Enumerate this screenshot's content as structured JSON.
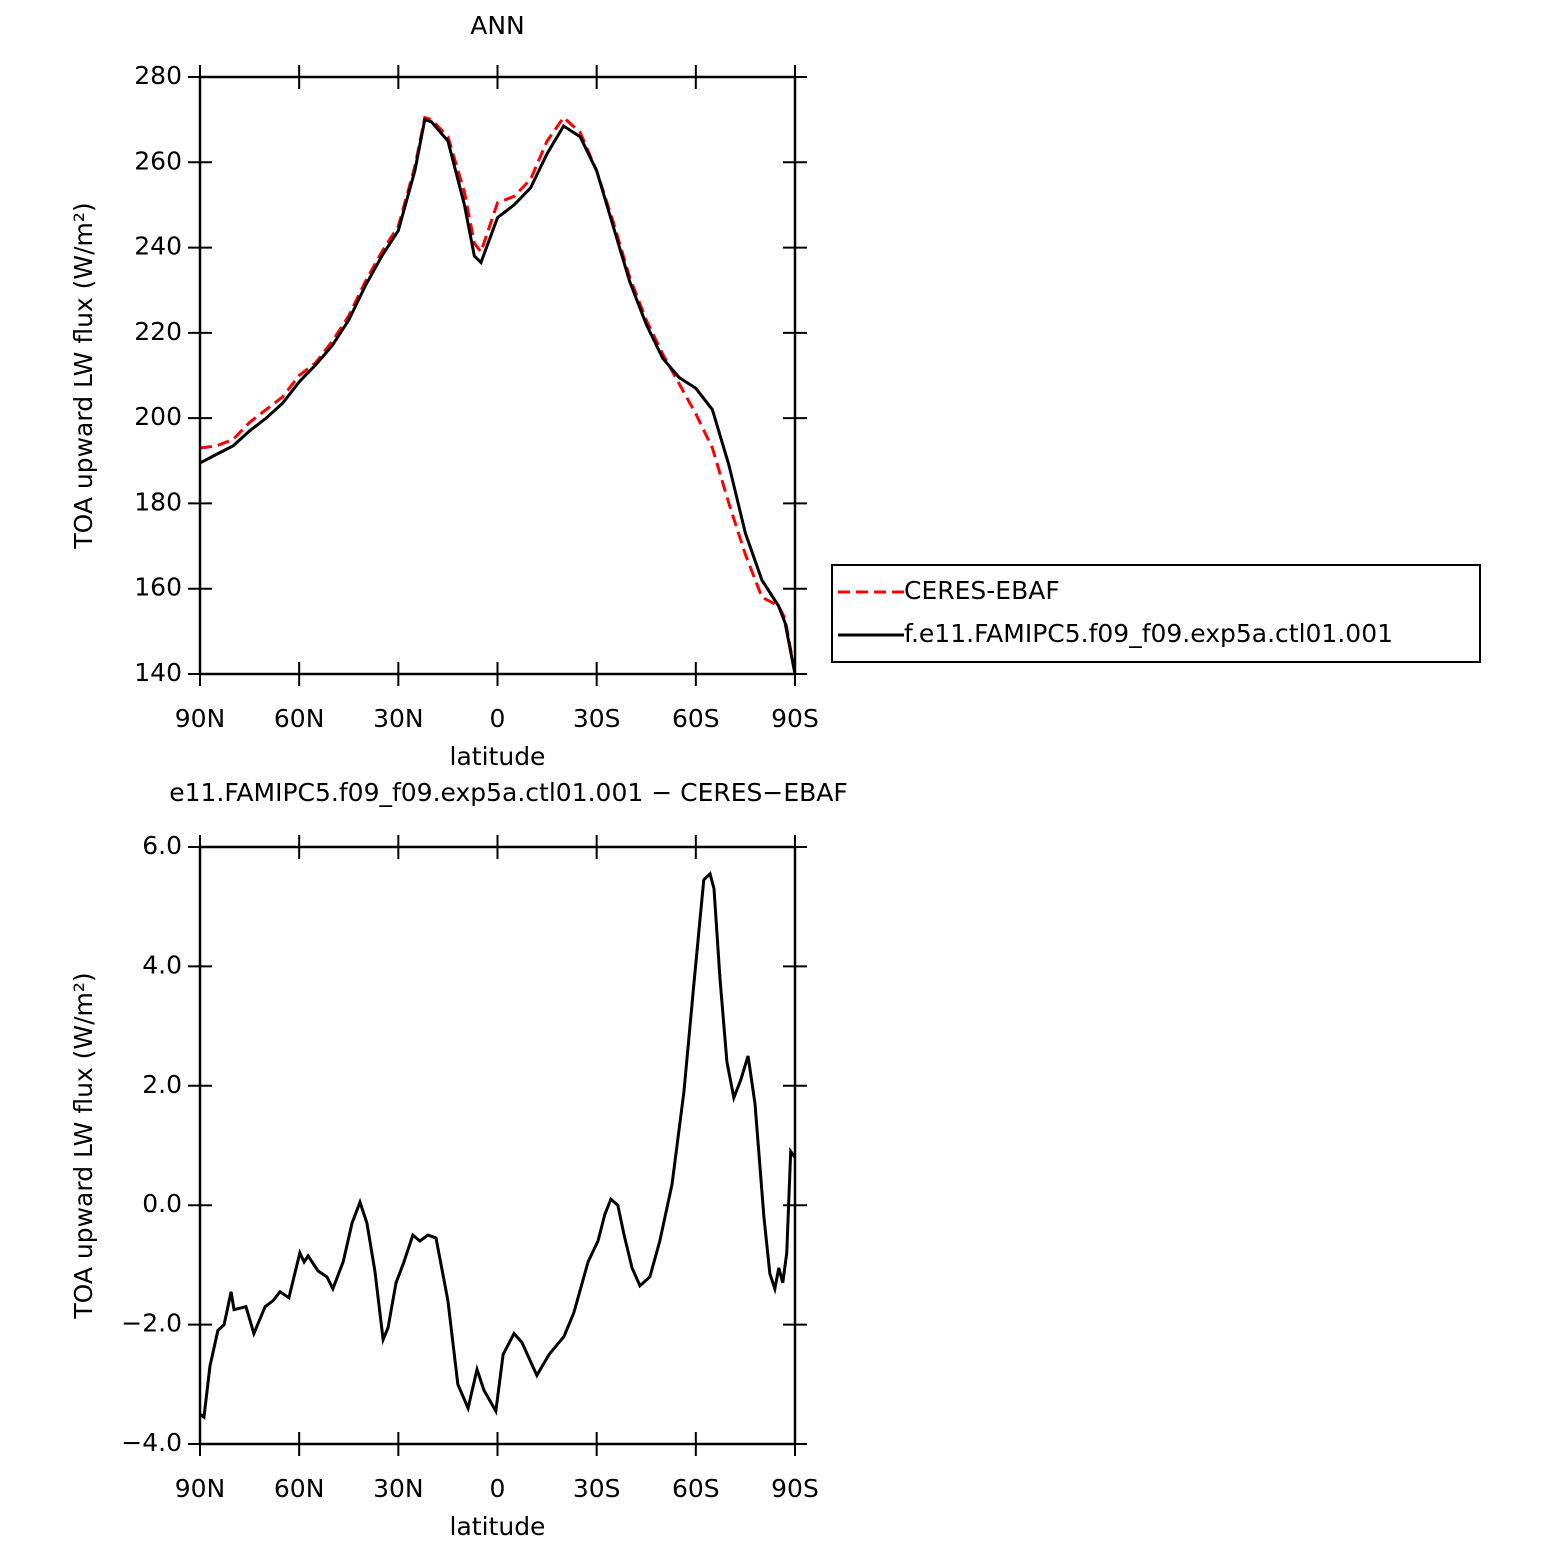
{
  "chart_data": [
    {
      "type": "line",
      "title": "ANN",
      "xlabel": "latitude",
      "ylabel": "TOA upward LW flux (W/m²)",
      "x": [
        90,
        85,
        80,
        75,
        70,
        65,
        60,
        55,
        50,
        45,
        40,
        35,
        30,
        25,
        22,
        20,
        15,
        10,
        7,
        5,
        0,
        -5,
        -10,
        -15,
        -20,
        -25,
        -30,
        -35,
        -40,
        -45,
        -50,
        -55,
        -60,
        -65,
        -70,
        -75,
        -80,
        -85,
        -87,
        -90
      ],
      "series": [
        {
          "name": "CERES-EBAF",
          "color": "#ff0000",
          "linestyle": "dashed",
          "values": [
            193,
            193.5,
            195,
            199,
            202,
            205,
            210,
            213,
            218,
            224,
            232,
            239,
            245,
            259,
            270.5,
            270,
            266,
            253,
            241,
            239,
            250.5,
            252,
            256,
            265,
            270.5,
            267,
            258,
            246,
            233,
            223,
            215,
            208,
            201,
            193,
            180,
            168,
            158,
            156,
            153,
            140
          ]
        },
        {
          "name": "f.e11.FAMIPC5.f09_f09.exp5a.ctl01.001",
          "color": "#000000",
          "linestyle": "solid",
          "values": [
            189.5,
            191.5,
            193.5,
            197,
            200,
            203.5,
            208.5,
            212.5,
            217,
            223,
            231,
            238,
            244,
            258,
            270,
            269.5,
            265,
            250,
            238,
            236.5,
            247,
            250,
            254,
            262,
            268.5,
            266,
            258,
            245,
            232,
            222,
            214,
            209.5,
            207,
            202,
            189,
            173,
            162,
            156,
            152,
            140
          ]
        }
      ],
      "xlim": [
        90,
        -90
      ],
      "xticks": [
        {
          "value": 90,
          "label": "90N"
        },
        {
          "value": 60,
          "label": "60N"
        },
        {
          "value": 30,
          "label": "30N"
        },
        0,
        {
          "value": -30,
          "label": "30S"
        },
        {
          "value": -60,
          "label": "60S"
        },
        {
          "value": -90,
          "label": "90S"
        }
      ],
      "ylim": [
        140,
        280
      ],
      "yticks": [
        140,
        160,
        180,
        200,
        220,
        240,
        260,
        280
      ],
      "legend": "right"
    },
    {
      "type": "line",
      "title": "e11.FAMIPC5.f09_f09.exp5a.ctl01.001 − CERES−EBAF",
      "xlabel": "latitude",
      "ylabel": "TOA upward LW flux (W/m²)",
      "x": [
        90,
        88.8,
        87,
        84.6,
        82.7,
        80.6,
        79.7,
        76.1,
        73.7,
        70.3,
        67.9,
        65.8,
        63.1,
        59.8,
        58.5,
        57.3,
        54.3,
        51.6,
        49.8,
        46.7,
        44,
        41.6,
        39.5,
        37.1,
        34.6,
        33.1,
        30.7,
        28.3,
        25.6,
        23.5,
        21,
        18.6,
        15,
        12,
        8.9,
        6.2,
        4.1,
        0.5,
        -1.7,
        -5,
        -7.4,
        -11.9,
        -15.6,
        -20.1,
        -23.1,
        -27.4,
        -30.4,
        -32.5,
        -34.3,
        -36.4,
        -38.3,
        -40.7,
        -43.1,
        -46.1,
        -49.1,
        -52.8,
        -56.4,
        -59.4,
        -62.4,
        -64.3,
        -65.5,
        -67.3,
        -69.4,
        -71.5,
        -73.6,
        -75.8,
        -77.9,
        -80.6,
        -82.4,
        -83.9,
        -85.1,
        -86.3,
        -87.5,
        -88.7,
        -90
      ],
      "series": [
        {
          "color": "#000000",
          "linestyle": "solid",
          "values": [
            -3.5,
            -3.55,
            -2.7,
            -2.1,
            -2.0,
            -1.45,
            -1.75,
            -1.7,
            -2.15,
            -1.7,
            -1.6,
            -1.45,
            -1.55,
            -0.8,
            -0.95,
            -0.85,
            -1.1,
            -1.2,
            -1.4,
            -0.95,
            -0.3,
            0.05,
            -0.3,
            -1.1,
            -2.25,
            -2.05,
            -1.3,
            -0.95,
            -0.5,
            -0.6,
            -0.5,
            -0.55,
            -1.6,
            -3.0,
            -3.4,
            -2.75,
            -3.1,
            -3.45,
            -2.5,
            -2.15,
            -2.3,
            -2.85,
            -2.5,
            -2.2,
            -1.8,
            -0.95,
            -0.6,
            -0.15,
            0.1,
            0.0,
            -0.5,
            -1.05,
            -1.35,
            -1.2,
            -0.6,
            0.35,
            1.9,
            3.7,
            5.45,
            5.55,
            5.3,
            3.8,
            2.4,
            1.8,
            2.1,
            2.5,
            1.7,
            -0.2,
            -1.15,
            -1.4,
            -1.05,
            -1.3,
            -0.8,
            0.9,
            0.8
          ]
        }
      ],
      "xlim": [
        90,
        -90
      ],
      "xticks": [
        {
          "value": 90,
          "label": "90N"
        },
        {
          "value": 60,
          "label": "60N"
        },
        {
          "value": 30,
          "label": "30N"
        },
        0,
        {
          "value": -30,
          "label": "30S"
        },
        {
          "value": -60,
          "label": "60S"
        },
        {
          "value": -90,
          "label": "90S"
        }
      ],
      "ylim": [
        -4,
        6
      ],
      "yticks": [
        {
          "value": -4,
          "label": "−4.0"
        },
        {
          "value": -2,
          "label": "−2.0"
        },
        {
          "value": 0,
          "label": "0.0"
        },
        {
          "value": 2,
          "label": "2.0"
        },
        {
          "value": 4,
          "label": "4.0"
        },
        {
          "value": 6,
          "label": "6.0"
        }
      ]
    }
  ]
}
